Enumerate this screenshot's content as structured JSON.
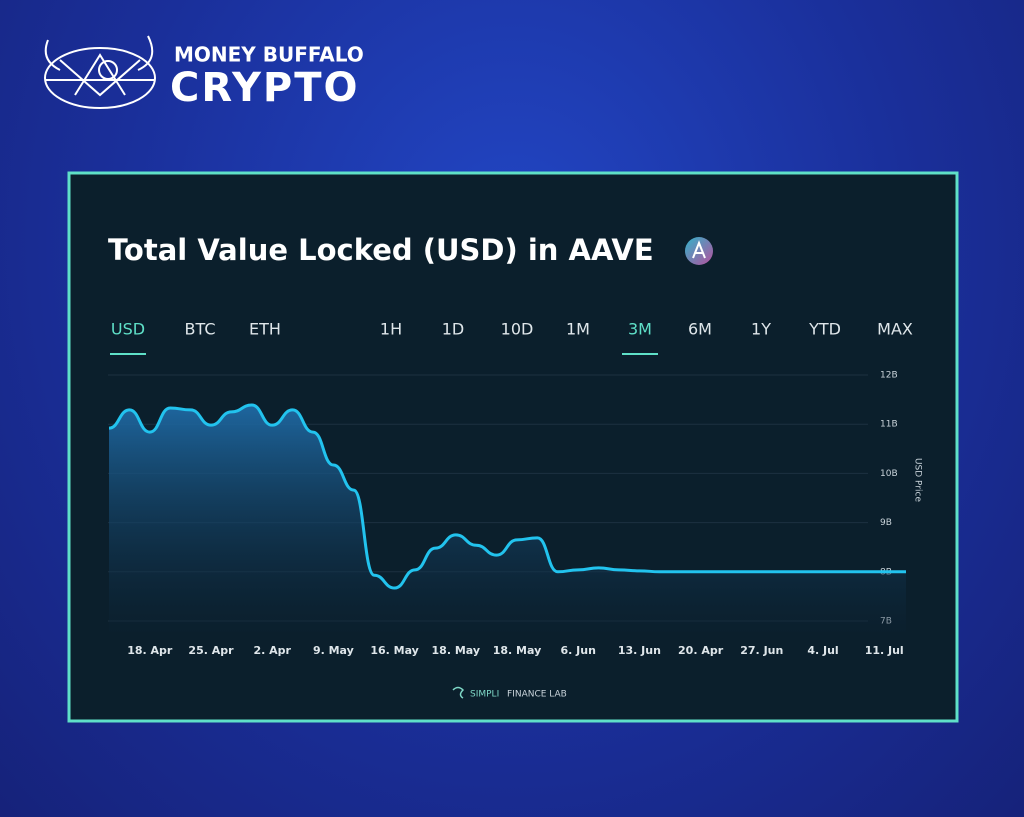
{
  "brand": {
    "name": "MONEY BUFFALO",
    "sub": "CRYPTO"
  },
  "tabs": {
    "currency": [
      "USD",
      "BTC",
      "ETH"
    ],
    "range": [
      "1H",
      "1D",
      "10D",
      "1M",
      "3M",
      "6M",
      "1Y",
      "YTD",
      "MAX"
    ],
    "active_currency": 0,
    "active_range": 4
  },
  "footer": {
    "brand": "SIMPLI",
    "rest": "FINANCE LAB"
  },
  "chart_data": {
    "type": "area",
    "title": "Total Value Locked (USD) in AAVE",
    "y_label": "USD Price",
    "categories": [
      null,
      null,
      "18. Apr",
      null,
      null,
      "25. Apr",
      null,
      null,
      "2. Apr",
      null,
      null,
      "9. May",
      null,
      null,
      "16. May",
      null,
      null,
      "18. May",
      null,
      null,
      "18. May",
      null,
      null,
      "6. Jun",
      null,
      null,
      "13. Jun",
      null,
      null,
      "20. Apr",
      null,
      null,
      "27. Jun",
      null,
      null,
      "4. Jul",
      null,
      null,
      "11. Jul",
      null
    ],
    "values": [
      10.92,
      11.29,
      10.84,
      11.33,
      11.29,
      10.98,
      11.25,
      11.39,
      10.98,
      11.29,
      10.84,
      10.17,
      9.66,
      7.93,
      7.67,
      8.04,
      8.48,
      8.75,
      8.54,
      8.34,
      8.65,
      8.69,
      8.0,
      8.04,
      8.08,
      8.04,
      8.02,
      8.0,
      8.0,
      8.0,
      8.0,
      8.0,
      8.0,
      8.0,
      8.0,
      8.0,
      8.0,
      8.0,
      8.0,
      8.0
    ],
    "color": "#22c3ee",
    "ylim": [
      7,
      12
    ],
    "yticks": [
      {
        "value": 7,
        "label": "7B"
      },
      {
        "value": 8,
        "label": "8B"
      },
      {
        "value": 9,
        "label": "9B"
      },
      {
        "value": 10,
        "label": "10B"
      },
      {
        "value": 11,
        "label": "11B"
      },
      {
        "value": 12,
        "label": "12B"
      }
    ],
    "grid": true
  }
}
